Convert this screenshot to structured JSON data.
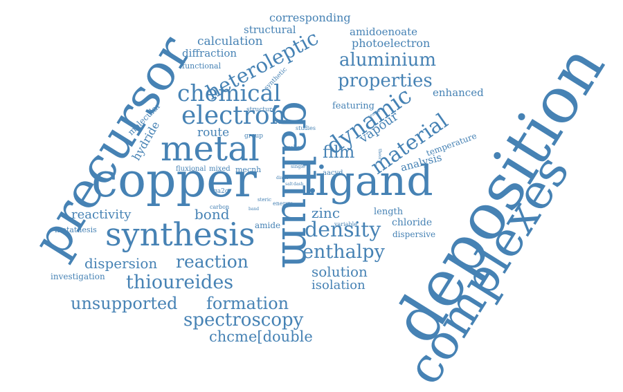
{
  "word_cloud": {
    "color": "#4682b4",
    "background": "#ffffff",
    "words": [
      "deposition",
      "complexes",
      "precursor",
      "copper",
      "gallium",
      "ligand",
      "metal",
      "synthesis",
      "electron",
      "chemical",
      "heteroleptic",
      "dynamic",
      "material",
      "density",
      "aluminium",
      "properties",
      "enthalpy",
      "reaction",
      "thioureides",
      "unsupported",
      "formation",
      "spectroscopy",
      "chcme[double",
      "dispersion",
      "reactivity",
      "hydride",
      "film",
      "vapour",
      "zinc",
      "bond",
      "solution",
      "isolation",
      "route",
      "calculation",
      "structural",
      "corresponding",
      "amidoenoate",
      "photoelectron",
      "diffraction",
      "functional",
      "molecular",
      "featuring",
      "enhanced",
      "analysis",
      "temperature",
      "length",
      "chloride",
      "dispersive",
      "investigation",
      "metathesis",
      "amide",
      "mecnh",
      "aacvd",
      "fluxional",
      "mixed",
      "synthetic",
      "structure",
      "group",
      "studies",
      "probe",
      "ga2o",
      "carbon",
      "band",
      "steric",
      "energy",
      "variable",
      "single",
      "salt",
      "dash",
      "dimer",
      "centre",
      "theory"
    ]
  }
}
